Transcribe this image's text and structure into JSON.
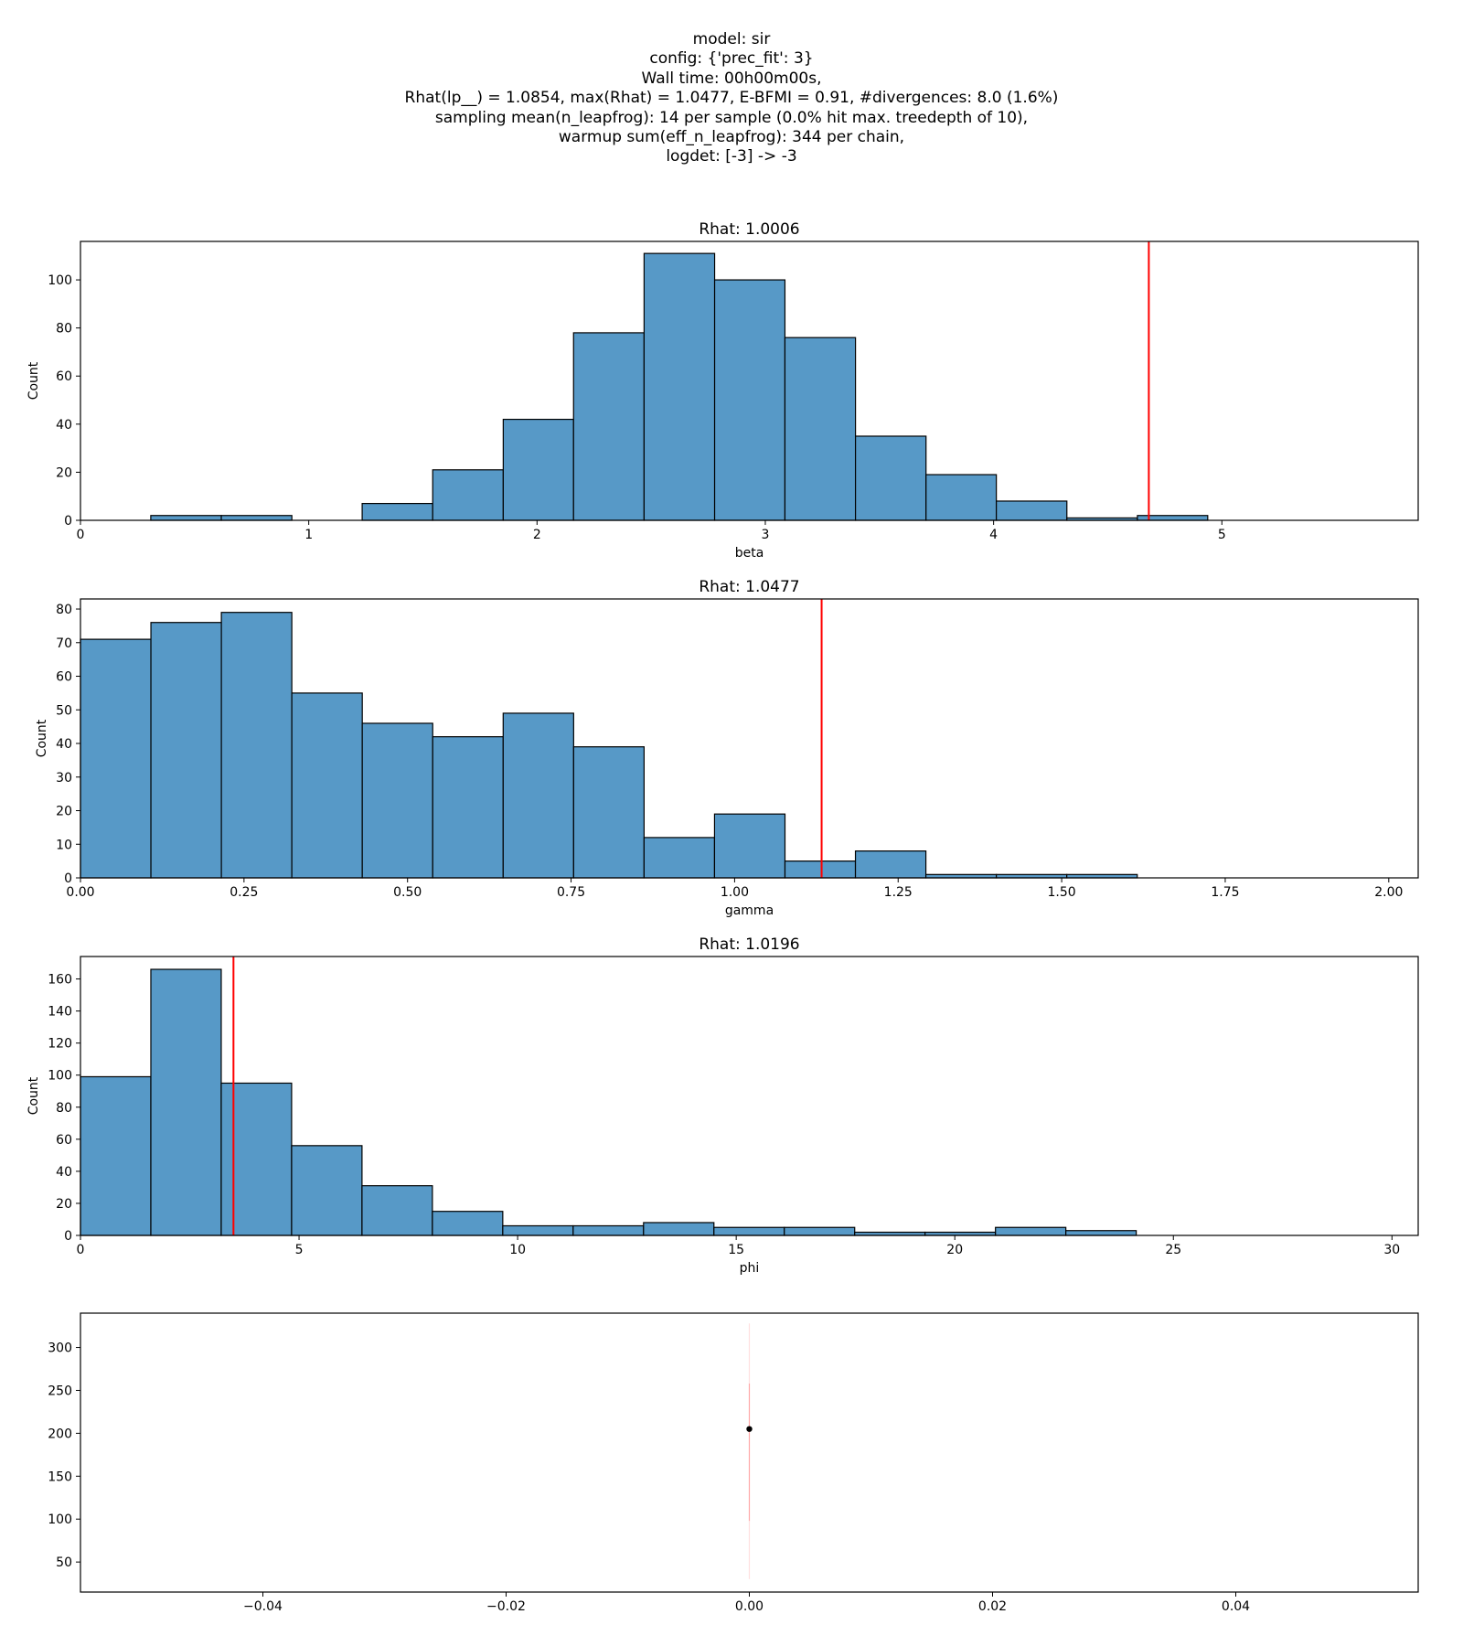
{
  "header": {
    "lines": [
      "model: sir",
      "config: {'prec_fit': 3}",
      "Wall time: 00h00m00s,",
      "Rhat(lp__) = 1.0854, max(Rhat) = 1.0477, E-BFMI = 0.91, #divergences: 8.0 (1.6%)",
      "sampling mean(n_leapfrog): 14 per sample (0.0% hit max. treedepth of 10),",
      "warmup sum(eff_n_leapfrog): 344 per chain,",
      "logdet: [-3] -> -3"
    ]
  },
  "colors": {
    "bar": "#5799c7",
    "bar_edge": "#000000",
    "marker_line": "#ff0000",
    "point": "#000000"
  },
  "chart_data": [
    {
      "type": "bar",
      "title": "Rhat: 1.0006",
      "xlabel": "beta",
      "ylabel": "Count",
      "xlim": [
        0,
        5.86
      ],
      "ylim": [
        0,
        116
      ],
      "xticks": [
        0,
        1,
        2,
        3,
        4,
        5
      ],
      "xtick_labels": [
        "0",
        "1",
        "2",
        "3",
        "4",
        "5"
      ],
      "yticks": [
        0,
        20,
        40,
        60,
        80,
        100
      ],
      "ytick_labels": [
        "0",
        "20",
        "40",
        "60",
        "80",
        "100"
      ],
      "bin_edges": [
        0.308,
        0.617,
        0.926,
        1.234,
        1.543,
        1.852,
        2.16,
        2.469,
        2.778,
        3.086,
        3.395,
        3.704,
        4.012,
        4.321,
        4.63,
        4.938
      ],
      "values": [
        2,
        2,
        0,
        7,
        21,
        42,
        78,
        111,
        100,
        76,
        35,
        19,
        8,
        1,
        2
      ],
      "vline": 4.68,
      "grid": false
    },
    {
      "type": "bar",
      "title": "Rhat: 1.0477",
      "xlabel": "gamma",
      "ylabel": "Count",
      "xlim": [
        0,
        2.045
      ],
      "ylim": [
        0,
        83
      ],
      "xticks": [
        0,
        0.25,
        0.5,
        0.75,
        1.0,
        1.25,
        1.5,
        1.75,
        2.0
      ],
      "xtick_labels": [
        "0.00",
        "0.25",
        "0.50",
        "0.75",
        "1.00",
        "1.25",
        "1.50",
        "1.75",
        "2.00"
      ],
      "yticks": [
        0,
        10,
        20,
        30,
        40,
        50,
        60,
        70,
        80
      ],
      "ytick_labels": [
        "0",
        "10",
        "20",
        "30",
        "40",
        "50",
        "60",
        "70",
        "80"
      ],
      "bin_edges": [
        0,
        0.1077,
        0.2154,
        0.3231,
        0.4308,
        0.5385,
        0.6462,
        0.7539,
        0.8616,
        0.9693,
        1.077,
        1.1847,
        1.2924,
        1.4001,
        1.5078,
        1.6155
      ],
      "values": [
        71,
        76,
        79,
        55,
        46,
        42,
        49,
        39,
        12,
        19,
        5,
        8,
        1,
        1,
        1
      ],
      "vline": 1.133,
      "grid": false
    },
    {
      "type": "bar",
      "title": "Rhat: 1.0196",
      "xlabel": "phi",
      "ylabel": "Count",
      "xlim": [
        0,
        30.6
      ],
      "ylim": [
        0,
        174
      ],
      "xticks": [
        0,
        5,
        10,
        15,
        20,
        25,
        30
      ],
      "xtick_labels": [
        "0",
        "5",
        "10",
        "15",
        "20",
        "25",
        "30"
      ],
      "yticks": [
        0,
        20,
        40,
        60,
        80,
        100,
        120,
        140,
        160
      ],
      "ytick_labels": [
        "0",
        "20",
        "40",
        "60",
        "80",
        "100",
        "120",
        "140",
        "160"
      ],
      "bin_edges": [
        0,
        1.61,
        3.22,
        4.83,
        6.44,
        8.05,
        9.66,
        11.27,
        12.88,
        14.49,
        16.1,
        17.71,
        19.32,
        20.93,
        22.54,
        24.15
      ],
      "values": [
        99,
        166,
        95,
        56,
        31,
        15,
        6,
        6,
        8,
        5,
        5,
        2,
        2,
        5,
        3
      ],
      "vline": 3.5,
      "grid": false
    },
    {
      "type": "scatter",
      "title": "",
      "xlabel": "",
      "ylabel": "",
      "xlim": [
        -0.055,
        0.055
      ],
      "ylim": [
        15,
        340
      ],
      "xticks": [
        -0.04,
        -0.02,
        0.0,
        0.02,
        0.04
      ],
      "xtick_labels": [
        "−0.04",
        "−0.02",
        "0.00",
        "0.02",
        "0.04"
      ],
      "yticks": [
        50,
        100,
        150,
        200,
        250,
        300
      ],
      "ytick_labels": [
        "50",
        "100",
        "150",
        "200",
        "250",
        "300"
      ],
      "points": [
        {
          "x": 0.0,
          "y": 205
        }
      ],
      "error_bars": [
        {
          "x": 0.0,
          "low": 30,
          "high": 328,
          "alpha": 0.12
        },
        {
          "x": 0.0,
          "low": 98,
          "high": 258,
          "alpha": 0.25
        }
      ],
      "grid": false
    }
  ]
}
